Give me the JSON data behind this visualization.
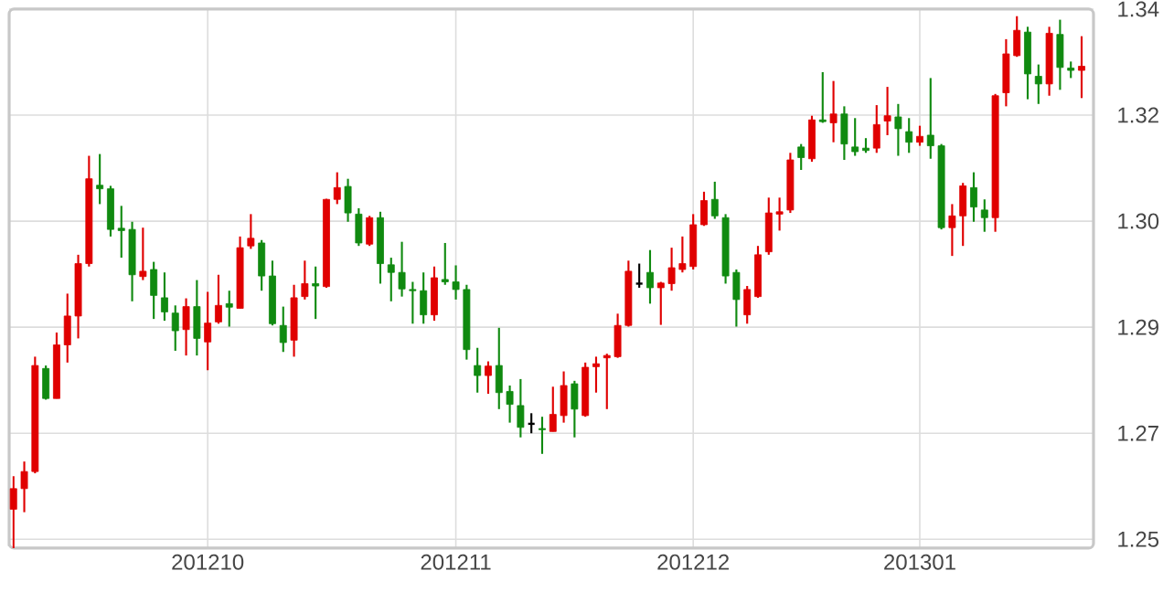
{
  "chart_data": {
    "type": "candlestick",
    "categories": [
      null,
      null,
      null,
      null,
      null,
      null,
      null,
      null,
      null,
      null,
      null,
      null,
      null,
      null,
      null,
      null,
      null,
      null,
      "201210",
      null,
      null,
      null,
      null,
      null,
      null,
      null,
      null,
      null,
      null,
      null,
      null,
      null,
      null,
      null,
      null,
      null,
      null,
      null,
      null,
      null,
      null,
      "201211",
      null,
      null,
      null,
      null,
      null,
      null,
      null,
      null,
      null,
      null,
      null,
      null,
      null,
      null,
      null,
      null,
      null,
      null,
      null,
      null,
      null,
      "201212",
      null,
      null,
      null,
      null,
      null,
      null,
      null,
      null,
      null,
      null,
      null,
      null,
      null,
      null,
      null,
      null,
      null,
      null,
      null,
      null,
      "201301",
      null,
      null,
      null,
      null,
      null,
      null,
      null,
      null,
      null,
      null,
      null,
      null,
      null,
      null,
      null
    ],
    "ohlc": [
      [
        1.2551,
        1.2607,
        1.2485,
        1.2586
      ],
      [
        1.2586,
        1.2632,
        1.2546,
        1.2615
      ],
      [
        1.2615,
        1.281,
        1.2612,
        1.2795
      ],
      [
        1.279,
        1.2795,
        1.2737,
        1.2739
      ],
      [
        1.2739,
        1.2851,
        1.2739,
        1.283
      ],
      [
        1.283,
        1.2917,
        1.28,
        1.2879
      ],
      [
        1.2879,
        1.2983,
        1.2841,
        1.2968
      ],
      [
        1.2968,
        1.3151,
        1.2963,
        1.3112
      ],
      [
        1.3101,
        1.3154,
        1.3069,
        1.3095
      ],
      [
        1.3095,
        1.31,
        1.3014,
        1.3026
      ],
      [
        1.3028,
        1.3066,
        1.2978,
        1.3024
      ],
      [
        1.3026,
        1.3039,
        1.2904,
        1.2949
      ],
      [
        1.2946,
        1.3029,
        1.294,
        1.2955
      ],
      [
        1.2958,
        1.2971,
        1.2874,
        1.2914
      ],
      [
        1.291,
        1.2953,
        1.2871,
        1.2886
      ],
      [
        1.2884,
        1.2897,
        1.282,
        1.2854
      ],
      [
        1.2856,
        1.2909,
        1.2812,
        1.2895
      ],
      [
        1.2895,
        1.294,
        1.2812,
        1.2841
      ],
      [
        1.2835,
        1.292,
        1.2787,
        1.2867
      ],
      [
        1.2869,
        1.2949,
        1.2866,
        1.2897
      ],
      [
        1.29,
        1.2922,
        1.2861,
        1.2894
      ],
      [
        1.2892,
        1.3014,
        1.2892,
        1.2995
      ],
      [
        1.2998,
        1.3052,
        1.2993,
        1.3011
      ],
      [
        1.3003,
        1.3008,
        1.2922,
        1.2947
      ],
      [
        1.2947,
        1.2973,
        1.2863,
        1.2866
      ],
      [
        1.2863,
        1.2895,
        1.2818,
        1.2834
      ],
      [
        1.2838,
        1.2932,
        1.281,
        1.291
      ],
      [
        1.2912,
        1.2973,
        1.2907,
        1.2934
      ],
      [
        1.2934,
        1.2963,
        1.2874,
        1.293
      ],
      [
        1.2929,
        1.3078,
        1.2927,
        1.3077
      ],
      [
        1.3077,
        1.3123,
        1.3069,
        1.3097
      ],
      [
        1.3099,
        1.3112,
        1.3039,
        1.3054
      ],
      [
        1.3052,
        1.3062,
        1.2998,
        1.3003
      ],
      [
        1.3001,
        1.3049,
        1.2998,
        1.3046
      ],
      [
        1.3046,
        1.3056,
        1.2934,
        1.2968
      ],
      [
        1.2966,
        1.2978,
        1.2904,
        1.2953
      ],
      [
        1.2953,
        1.3005,
        1.2912,
        1.2925
      ],
      [
        1.2924,
        1.2937,
        1.2866,
        1.2922
      ],
      [
        1.2922,
        1.2953,
        1.2866,
        1.2881
      ],
      [
        1.2881,
        1.2963,
        1.2871,
        1.2944
      ],
      [
        1.2941,
        1.3003,
        1.2932,
        1.2937
      ],
      [
        1.2937,
        1.2965,
        1.2907,
        1.2924
      ],
      [
        1.2924,
        1.2932,
        1.2805,
        1.2822
      ],
      [
        1.2795,
        1.2825,
        1.2749,
        1.2778
      ],
      [
        1.2778,
        1.2802,
        1.2747,
        1.2794
      ],
      [
        1.2795,
        1.2859,
        1.2721,
        1.2749
      ],
      [
        1.2751,
        1.2761,
        1.2698,
        1.2729
      ],
      [
        1.2727,
        1.2772,
        1.2673,
        1.269
      ],
      [
        1.2696,
        1.2714,
        1.268,
        1.2696
      ],
      [
        1.2688,
        1.2708,
        1.2645,
        1.2686
      ],
      [
        1.2683,
        1.2759,
        1.2683,
        1.2712
      ],
      [
        1.271,
        1.2785,
        1.2698,
        1.2761
      ],
      [
        1.2764,
        1.2769,
        1.2673,
        1.2721
      ],
      [
        1.271,
        1.28,
        1.2708,
        1.2792
      ],
      [
        1.2793,
        1.281,
        1.2749,
        1.2798
      ],
      [
        1.2808,
        1.2815,
        1.2721,
        1.2812
      ],
      [
        1.281,
        1.2883,
        1.2808,
        1.2863
      ],
      [
        1.2863,
        1.2973,
        1.2861,
        1.2955
      ],
      [
        1.2934,
        1.2968,
        1.2927,
        1.2934
      ],
      [
        1.2953,
        1.2991,
        1.29,
        1.2927
      ],
      [
        1.2927,
        1.2937,
        1.2864,
        1.2935
      ],
      [
        1.2934,
        1.2995,
        1.2922,
        1.2961
      ],
      [
        1.2958,
        1.3014,
        1.2953,
        1.2968
      ],
      [
        1.2963,
        1.3052,
        1.2958,
        1.3034
      ],
      [
        1.3034,
        1.309,
        1.3032,
        1.3075
      ],
      [
        1.3077,
        1.3107,
        1.3044,
        1.3049
      ],
      [
        1.3046,
        1.3052,
        1.2934,
        1.2947
      ],
      [
        1.2953,
        1.2958,
        1.2861,
        1.2907
      ],
      [
        1.2881,
        1.293,
        1.2866,
        1.2924
      ],
      [
        1.2912,
        1.2998,
        1.291,
        1.2983
      ],
      [
        1.2988,
        1.308,
        1.2983,
        1.3054
      ],
      [
        1.3052,
        1.308,
        1.3024,
        1.3056
      ],
      [
        1.3059,
        1.3156,
        1.3054,
        1.3144
      ],
      [
        1.3166,
        1.3171,
        1.3127,
        1.3148
      ],
      [
        1.3146,
        1.3219,
        1.3141,
        1.3212
      ],
      [
        1.3212,
        1.3293,
        1.3207,
        1.3209
      ],
      [
        1.3207,
        1.3278,
        1.3174,
        1.3222
      ],
      [
        1.3222,
        1.3235,
        1.3144,
        1.3171
      ],
      [
        1.3166,
        1.3215,
        1.3151,
        1.3158
      ],
      [
        1.3164,
        1.3181,
        1.3156,
        1.316
      ],
      [
        1.3164,
        1.3237,
        1.3156,
        1.3204
      ],
      [
        1.321,
        1.3268,
        1.3186,
        1.3219
      ],
      [
        1.3217,
        1.3239,
        1.3151,
        1.3197
      ],
      [
        1.3192,
        1.3215,
        1.3156,
        1.3174
      ],
      [
        1.3174,
        1.3202,
        1.3168,
        1.3184
      ],
      [
        1.3186,
        1.3283,
        1.3146,
        1.3168
      ],
      [
        1.3168,
        1.3171,
        1.3026,
        1.3029
      ],
      [
        1.3029,
        1.3069,
        1.2981,
        1.3049
      ],
      [
        1.3049,
        1.3105,
        1.2998,
        1.31
      ],
      [
        1.3097,
        1.3123,
        1.3039,
        1.3064
      ],
      [
        1.3059,
        1.3077,
        1.3022,
        1.3046
      ],
      [
        1.3046,
        1.3256,
        1.3022,
        1.3253
      ],
      [
        1.3258,
        1.3349,
        1.3235,
        1.3324
      ],
      [
        1.3321,
        1.3388,
        1.3319,
        1.3364
      ],
      [
        1.3361,
        1.337,
        1.3247,
        1.329
      ],
      [
        1.3286,
        1.3306,
        1.3239,
        1.3273
      ],
      [
        1.3273,
        1.337,
        1.3253,
        1.3359
      ],
      [
        1.3357,
        1.3382,
        1.3263,
        1.3301
      ],
      [
        1.33,
        1.3311,
        1.3283,
        1.3296
      ],
      [
        1.3296,
        1.3354,
        1.3249,
        1.3303
      ]
    ],
    "colors": [
      "#e00000",
      "#e00000",
      "#e00000",
      "#108a10",
      "#e00000",
      "#e00000",
      "#e00000",
      "#e00000",
      "#108a10",
      "#108a10",
      "#108a10",
      "#108a10",
      "#e00000",
      "#108a10",
      "#108a10",
      "#108a10",
      "#e00000",
      "#108a10",
      "#e00000",
      "#e00000",
      "#108a10",
      "#e00000",
      "#e00000",
      "#108a10",
      "#108a10",
      "#108a10",
      "#e00000",
      "#e00000",
      "#108a10",
      "#e00000",
      "#e00000",
      "#108a10",
      "#108a10",
      "#e00000",
      "#108a10",
      "#108a10",
      "#108a10",
      "#108a10",
      "#108a10",
      "#e00000",
      "#108a10",
      "#108a10",
      "#108a10",
      "#108a10",
      "#e00000",
      "#108a10",
      "#108a10",
      "#108a10",
      "#000000",
      "#108a10",
      "#e00000",
      "#e00000",
      "#108a10",
      "#e00000",
      "#e00000",
      "#e00000",
      "#e00000",
      "#e00000",
      "#000000",
      "#108a10",
      "#e00000",
      "#e00000",
      "#e00000",
      "#e00000",
      "#e00000",
      "#108a10",
      "#108a10",
      "#108a10",
      "#e00000",
      "#e00000",
      "#e00000",
      "#e00000",
      "#e00000",
      "#108a10",
      "#e00000",
      "#108a10",
      "#e00000",
      "#108a10",
      "#108a10",
      "#108a10",
      "#e00000",
      "#e00000",
      "#108a10",
      "#108a10",
      "#e00000",
      "#108a10",
      "#108a10",
      "#e00000",
      "#e00000",
      "#108a10",
      "#108a10",
      "#e00000",
      "#e00000",
      "#e00000",
      "#108a10",
      "#108a10",
      "#e00000",
      "#108a10",
      "#108a10",
      "#e00000"
    ],
    "ylim": [
      1.2485,
      1.34
    ],
    "yticks": [
      1.25,
      {
        "value": 1.268,
        "label": "1.27"
      },
      {
        "value": 1.286,
        "label": "1.29"
      },
      {
        "value": 1.304,
        "label": "1.30"
      },
      {
        "value": 1.322,
        "label": "1.32"
      },
      1.34
    ],
    "grid": true
  }
}
